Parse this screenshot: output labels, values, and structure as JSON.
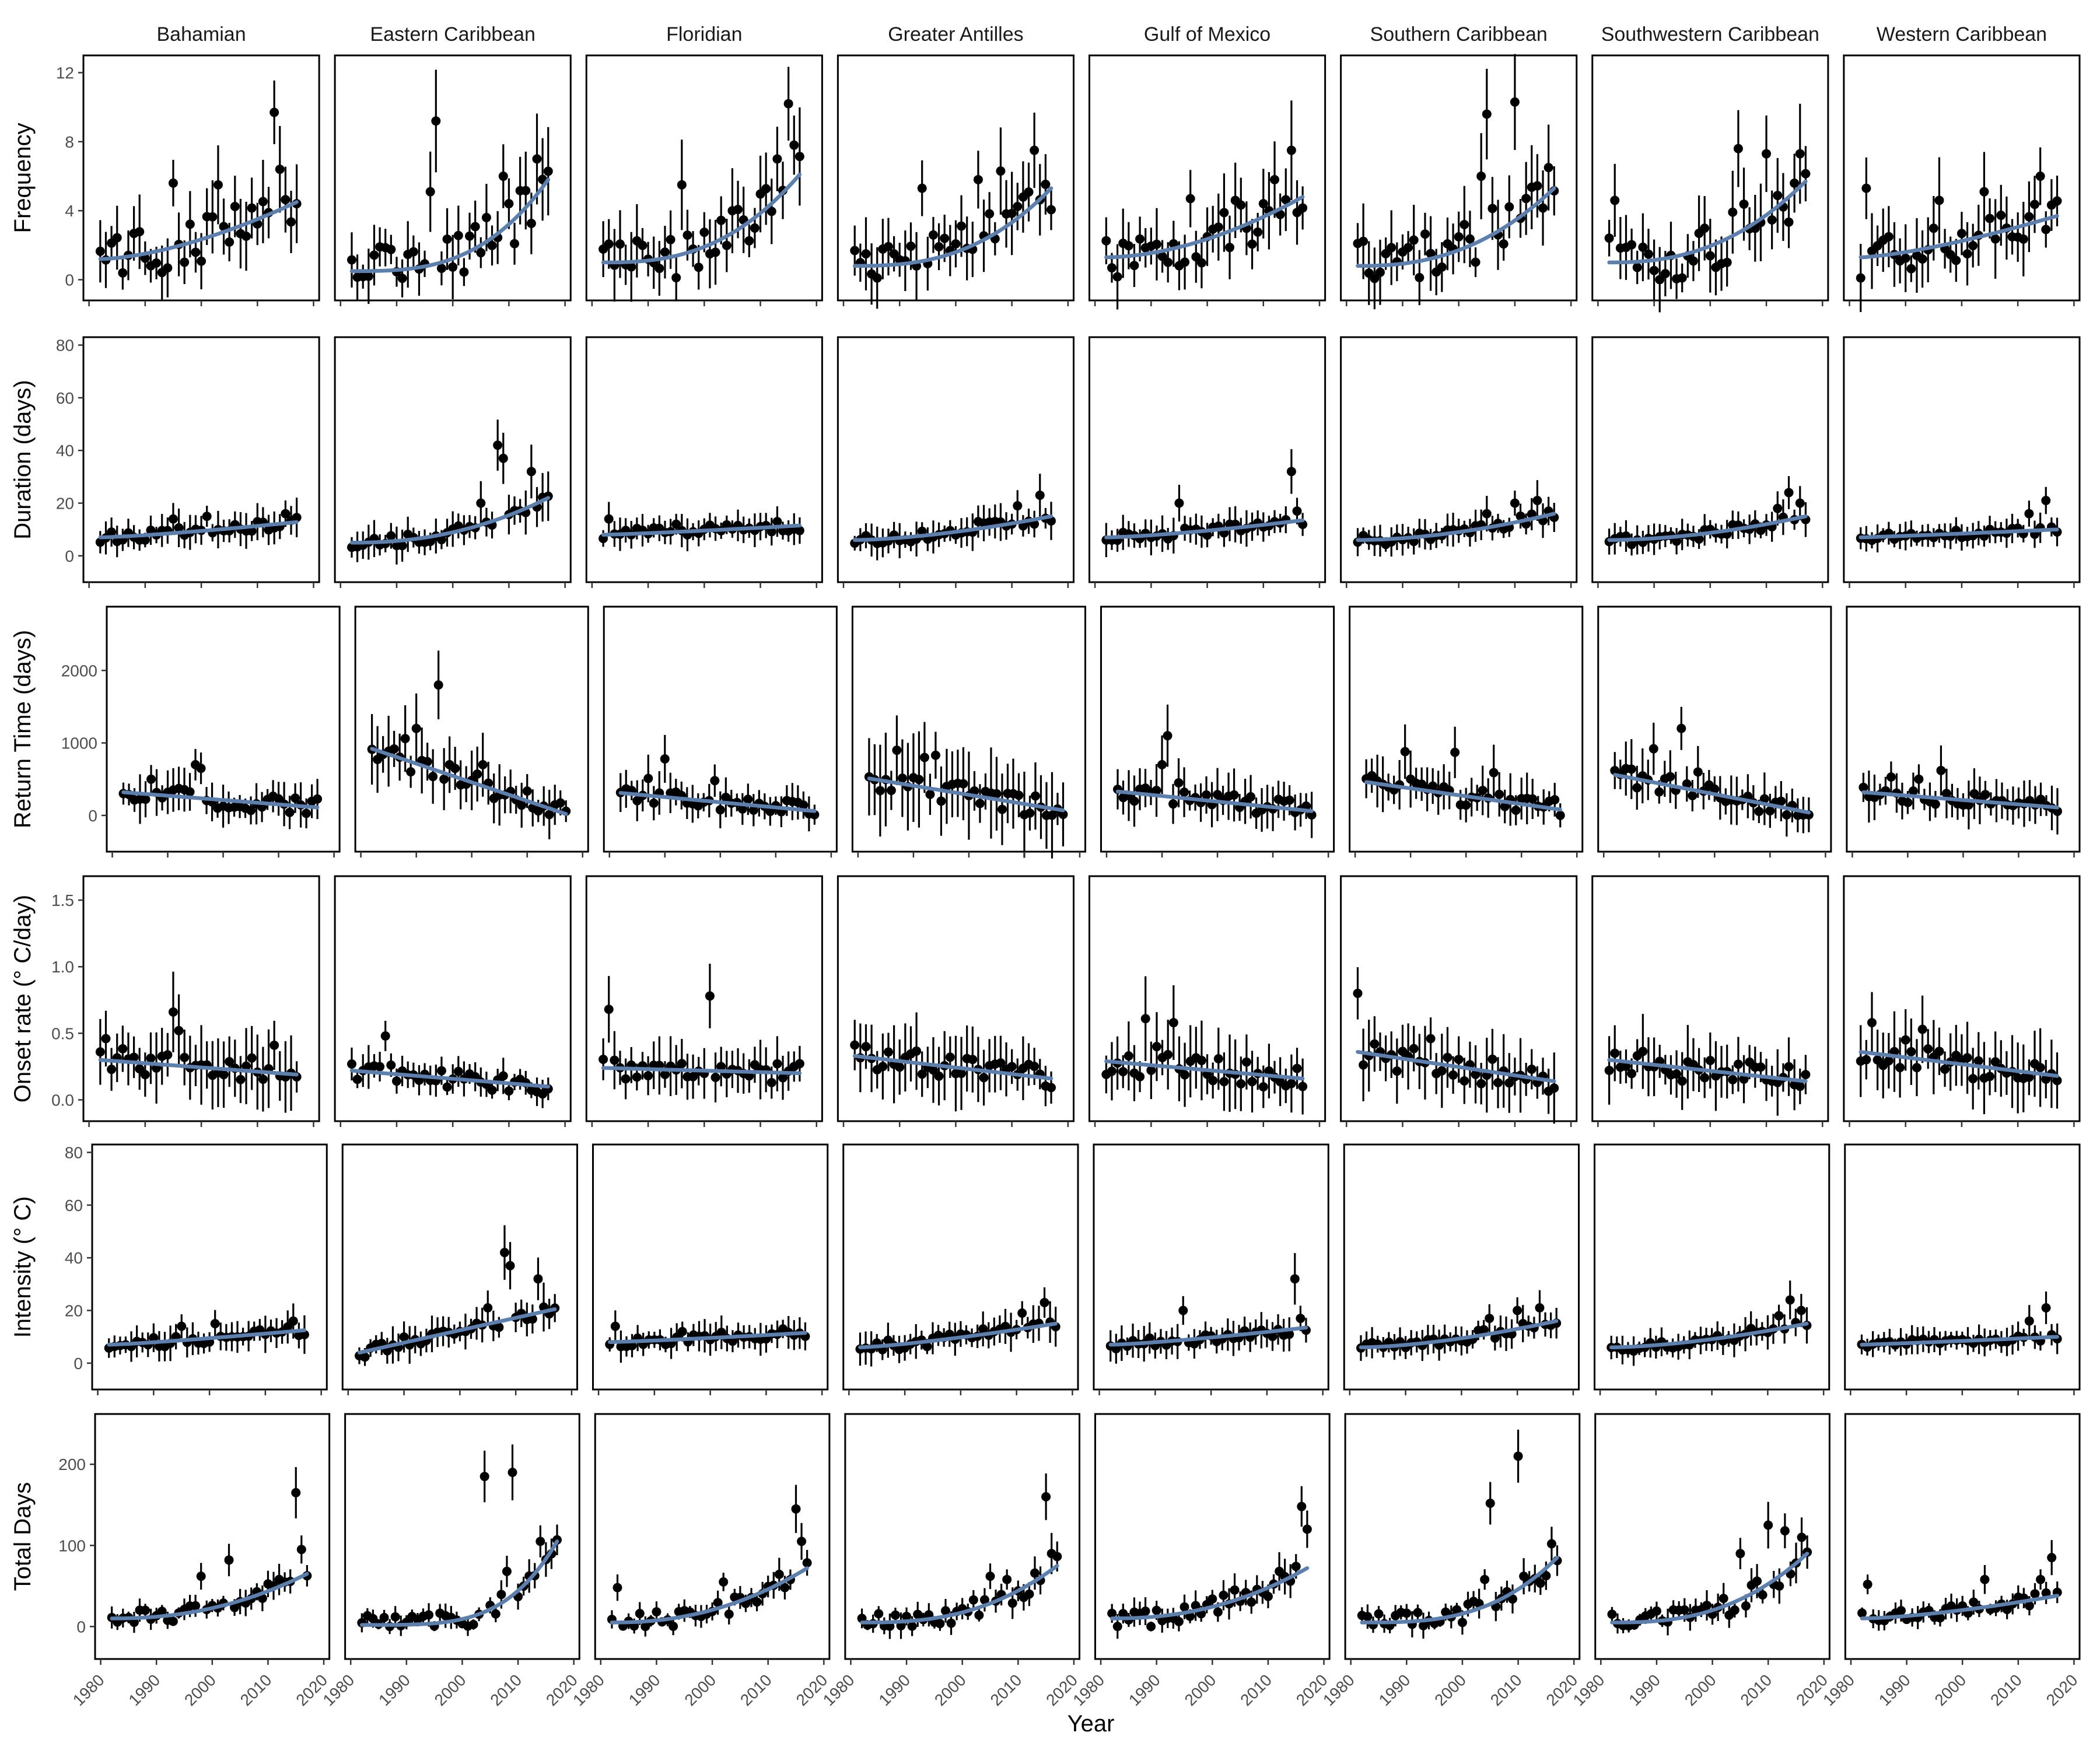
{
  "colors": {
    "trend": "#5b7fae",
    "points": "#000000",
    "frame": "#000000",
    "tick_text": "#4d4d4d"
  },
  "chart_data": {
    "type": "scatter",
    "layout": "faceted grid: rows = metrics, columns = regions",
    "title": "",
    "xlabel": "Year",
    "x_ticks": [
      1980,
      1990,
      2000,
      2010,
      2020
    ],
    "xlim": [
      1979,
      2021
    ],
    "regions": [
      "Bahamian",
      "Eastern Caribbean",
      "Floridian",
      "Greater Antilles",
      "Gulf of Mexico",
      "Southern Caribbean",
      "Southwestern Caribbean",
      "Western Caribbean"
    ],
    "series_description": "black points with vertical error bars = annual values per region; blue line = fitted trend",
    "rows": [
      {
        "ylabel": "Frequency",
        "y_ticks": [
          0,
          4,
          8,
          12
        ],
        "ylim": [
          -1.2,
          13
        ],
        "trend": [
          [
            1.2,
            4.5
          ],
          [
            0.5,
            5.8
          ],
          [
            1.0,
            6.1
          ],
          [
            0.8,
            5.3
          ],
          [
            1.3,
            4.8
          ],
          [
            0.8,
            5.3
          ],
          [
            1.0,
            5.7
          ],
          [
            1.3,
            3.7
          ]
        ],
        "trend_shape": [
          1.6,
          3.0,
          2.6,
          2.6,
          1.8,
          2.4,
          2.4,
          1.4
        ],
        "amp": [
          1.35,
          1.5,
          1.45,
          1.4,
          1.3,
          1.55,
          1.5,
          1.25
        ],
        "err": [
          1.4,
          1.4,
          1.5,
          1.5,
          1.5,
          1.5,
          1.5,
          1.5
        ],
        "outliers": [
          [
            [
              2013,
              9.7
            ],
            [
              2014,
              6.4
            ],
            [
              1995,
              5.6
            ],
            [
              2003,
              5.5
            ]
          ],
          [
            [
              1997,
              9.2
            ],
            [
              2009,
              6.0
            ],
            [
              2015,
              7.0
            ],
            [
              1996,
              5.1
            ]
          ],
          [
            [
              2015,
              10.2
            ],
            [
              2016,
              7.8
            ],
            [
              1996,
              5.5
            ],
            [
              2013,
              7.0
            ]
          ],
          [
            [
              2014,
              7.5
            ],
            [
              2004,
              5.8
            ],
            [
              2008,
              6.3
            ],
            [
              1994,
              5.3
            ]
          ],
          [
            [
              2015,
              7.5
            ],
            [
              2012,
              5.8
            ],
            [
              1997,
              4.7
            ],
            [
              2005,
              4.6
            ]
          ],
          [
            [
              2005,
              9.6
            ],
            [
              2010,
              10.3
            ],
            [
              2004,
              6.0
            ],
            [
              2016,
              6.5
            ]
          ],
          [
            [
              2005,
              7.6
            ],
            [
              2010,
              7.3
            ],
            [
              2016,
              7.3
            ],
            [
              1983,
              4.6
            ]
          ],
          [
            [
              1983,
              5.3
            ],
            [
              2014,
              6.0
            ],
            [
              1996,
              4.6
            ],
            [
              2004,
              5.1
            ]
          ]
        ]
      },
      {
        "ylabel": "Duration (days)",
        "y_ticks": [
          0,
          20,
          40,
          60,
          80
        ],
        "ylim": [
          -10,
          83
        ],
        "trend": [
          [
            7.0,
            12.8
          ],
          [
            5.0,
            22.0
          ],
          [
            8.0,
            11.5
          ],
          [
            6.0,
            15.0
          ],
          [
            7.0,
            13.5
          ],
          [
            6.0,
            16.0
          ],
          [
            6.0,
            15.0
          ],
          [
            7.0,
            10.0
          ]
        ],
        "trend_shape": [
          1.3,
          2.2,
          1.2,
          1.6,
          1.4,
          1.8,
          1.8,
          1.1
        ],
        "amp": [
          2.0,
          2.2,
          2.0,
          2.0,
          2.0,
          2.0,
          2.0,
          1.6
        ],
        "err": [
          4.5,
          5.0,
          4.0,
          4.5,
          4.5,
          4.0,
          4.0,
          3.5
        ],
        "outliers": [
          [
            [
              2001,
              15.0
            ],
            [
              1995,
              14.0
            ],
            [
              2015,
              16.0
            ]
          ],
          [
            [
              2008,
              42.0
            ],
            [
              2009,
              37.0
            ],
            [
              2014,
              32.0
            ],
            [
              2005,
              20.0
            ]
          ],
          [
            [
              1983,
              14.0
            ],
            [
              1995,
              12.0
            ],
            [
              2013,
              13.0
            ]
          ],
          [
            [
              2011,
              19.0
            ],
            [
              2015,
              23.0
            ],
            [
              2004,
              13.0
            ]
          ],
          [
            [
              2015,
              32.0
            ],
            [
              1995,
              20.0
            ],
            [
              2016,
              17.0
            ]
          ],
          [
            [
              2010,
              20.0
            ],
            [
              2014,
              21.0
            ],
            [
              2005,
              16.0
            ]
          ],
          [
            [
              2014,
              24.0
            ],
            [
              2012,
              18.0
            ],
            [
              2016,
              20.0
            ]
          ],
          [
            [
              2015,
              21.0
            ],
            [
              2012,
              16.0
            ]
          ]
        ]
      },
      {
        "ylabel": "Return Time (days)",
        "y_ticks": [
          0,
          1000,
          2000
        ],
        "ylim": [
          -500,
          2880
        ],
        "trend": [
          [
            320,
            110
          ],
          [
            920,
            20
          ],
          [
            310,
            60
          ],
          [
            510,
            70
          ],
          [
            330,
            60
          ],
          [
            460,
            80
          ],
          [
            560,
            40
          ],
          [
            320,
            110
          ]
        ],
        "trend_shape": [
          1.0,
          1.0,
          1.0,
          1.0,
          1.0,
          1.0,
          1.0,
          1.0
        ],
        "amp": [
          120,
          150,
          110,
          150,
          120,
          130,
          130,
          120
        ],
        "err": [
          250,
          300,
          200,
          450,
          250,
          250,
          250,
          250
        ],
        "outliers": [
          [
            [
              1995,
              700
            ],
            [
              1996,
              650
            ],
            [
              1987,
              500
            ]
          ],
          [
            [
              1994,
              1800
            ],
            [
              1988,
              1060
            ],
            [
              1990,
              1200
            ],
            [
              2002,
              700
            ]
          ],
          [
            [
              1990,
              780
            ],
            [
              1987,
              510
            ],
            [
              1999,
              480
            ]
          ],
          [
            [
              1987,
              900
            ],
            [
              1992,
              800
            ],
            [
              1994,
              830
            ]
          ],
          [
            [
              1991,
              1100
            ],
            [
              1990,
              700
            ],
            [
              1993,
              450
            ]
          ],
          [
            [
              1989,
              880
            ],
            [
              1998,
              870
            ],
            [
              2005,
              590
            ]
          ],
          [
            [
              1994,
              1200
            ],
            [
              1989,
              920
            ],
            [
              1997,
              600
            ]
          ],
          [
            [
              1996,
              620
            ],
            [
              1987,
              530
            ],
            [
              1992,
              500
            ]
          ]
        ]
      },
      {
        "ylabel": "Onset rate (° C/day)",
        "y_ticks": [
          0.0,
          0.5,
          1.0,
          1.5
        ],
        "ylim": [
          -0.16,
          1.68
        ],
        "trend": [
          [
            0.3,
            0.19
          ],
          [
            0.22,
            0.1
          ],
          [
            0.24,
            0.2
          ],
          [
            0.33,
            0.16
          ],
          [
            0.29,
            0.16
          ],
          [
            0.36,
            0.14
          ],
          [
            0.3,
            0.14
          ],
          [
            0.36,
            0.18
          ]
        ],
        "trend_shape": [
          1.0,
          1.0,
          1.0,
          1.0,
          1.0,
          1.0,
          1.0,
          1.0
        ],
        "amp": [
          0.1,
          0.07,
          0.08,
          0.09,
          0.1,
          0.1,
          0.1,
          0.1
        ],
        "err": [
          0.2,
          0.1,
          0.15,
          0.2,
          0.2,
          0.2,
          0.18,
          0.2
        ],
        "outliers": [
          [
            [
              1995,
              0.66
            ],
            [
              1996,
              0.52
            ],
            [
              2013,
              0.41
            ],
            [
              1983,
              0.46
            ]
          ],
          [
            [
              1988,
              0.48
            ]
          ],
          [
            [
              1983,
              0.68
            ],
            [
              2001,
              0.78
            ]
          ],
          [
            [
              1984,
              0.4
            ]
          ],
          [
            [
              1989,
              0.61
            ],
            [
              1994,
              0.58
            ],
            [
              1991,
              0.4
            ]
          ],
          [
            [
              1982,
              0.8
            ],
            [
              1985,
              0.42
            ],
            [
              1995,
              0.46
            ]
          ],
          [
            [
              1983,
              0.35
            ]
          ],
          [
            [
              1984,
              0.58
            ],
            [
              1993,
              0.53
            ],
            [
              1990,
              0.45
            ]
          ]
        ]
      },
      {
        "ylabel": "Intensity (° C)",
        "y_ticks": [
          0,
          20,
          40,
          60,
          80
        ],
        "ylim": [
          -10,
          83
        ],
        "trend": [
          [
            7.0,
            12.5
          ],
          [
            4.0,
            20.5
          ],
          [
            8.0,
            11.5
          ],
          [
            6.0,
            15.0
          ],
          [
            7.0,
            13.5
          ],
          [
            6.0,
            16.0
          ],
          [
            6.0,
            15.0
          ],
          [
            7.0,
            10.0
          ]
        ],
        "trend_shape": [
          1.2,
          1.0,
          1.2,
          1.3,
          1.3,
          1.6,
          1.6,
          1.1
        ],
        "amp": [
          2.0,
          2.2,
          2.0,
          2.0,
          2.0,
          2.0,
          2.0,
          1.6
        ],
        "err": [
          4.5,
          5.0,
          4.0,
          4.5,
          4.5,
          4.0,
          4.0,
          3.5
        ],
        "outliers": [
          [
            [
              2001,
              15.0
            ],
            [
              1995,
              14.0
            ],
            [
              2015,
              16.0
            ]
          ],
          [
            [
              2008,
              42.0
            ],
            [
              2009,
              37.0
            ],
            [
              2014,
              32.0
            ],
            [
              2005,
              21.0
            ]
          ],
          [
            [
              1983,
              14.0
            ],
            [
              1995,
              12.0
            ],
            [
              2013,
              13.0
            ]
          ],
          [
            [
              2011,
              19.0
            ],
            [
              2015,
              23.0
            ],
            [
              2004,
              13.0
            ]
          ],
          [
            [
              2015,
              32.0
            ],
            [
              1995,
              20.0
            ],
            [
              2016,
              17.0
            ]
          ],
          [
            [
              2010,
              20.0
            ],
            [
              2014,
              21.0
            ],
            [
              2005,
              17.0
            ]
          ],
          [
            [
              2014,
              24.0
            ],
            [
              2012,
              18.0
            ],
            [
              2016,
              20.0
            ]
          ],
          [
            [
              2015,
              21.0
            ],
            [
              2012,
              16.0
            ]
          ]
        ]
      },
      {
        "ylabel": "Total Days",
        "y_ticks": [
          0,
          100,
          200
        ],
        "ylim": [
          -40,
          262
        ],
        "trend": [
          [
            10,
            65
          ],
          [
            2,
            105
          ],
          [
            5,
            72
          ],
          [
            5,
            75
          ],
          [
            10,
            72
          ],
          [
            5,
            85
          ],
          [
            5,
            90
          ],
          [
            10,
            38
          ]
        ],
        "trend_shape": [
          2.2,
          4.0,
          2.2,
          2.6,
          2.2,
          3.0,
          2.6,
          1.5
        ],
        "amp": [
          10,
          12,
          12,
          12,
          12,
          14,
          14,
          8
        ],
        "err": [
          10,
          10,
          10,
          12,
          12,
          12,
          12,
          10
        ],
        "outliers": [
          [
            [
              2015,
              165
            ],
            [
              2016,
              95
            ],
            [
              1998,
              62
            ],
            [
              2003,
              82
            ]
          ],
          [
            [
              2004,
              185
            ],
            [
              2009,
              190
            ],
            [
              2008,
              68
            ],
            [
              2014,
              105
            ]
          ],
          [
            [
              2015,
              145
            ],
            [
              2016,
              105
            ],
            [
              1983,
              48
            ],
            [
              2002,
              55
            ]
          ],
          [
            [
              2015,
              160
            ],
            [
              2016,
              90
            ],
            [
              2005,
              62
            ],
            [
              2008,
              58
            ]
          ],
          [
            [
              2016,
              148
            ],
            [
              2017,
              120
            ],
            [
              2012,
              68
            ],
            [
              2004,
              45
            ]
          ],
          [
            [
              2005,
              152
            ],
            [
              2010,
              210
            ],
            [
              2004,
              58
            ],
            [
              2016,
              102
            ]
          ],
          [
            [
              2010,
              125
            ],
            [
              2013,
              118
            ],
            [
              2016,
              110
            ],
            [
              2005,
              90
            ]
          ],
          [
            [
              2016,
              85
            ],
            [
              2014,
              58
            ],
            [
              2004,
              58
            ],
            [
              1983,
              52
            ]
          ]
        ]
      }
    ]
  }
}
